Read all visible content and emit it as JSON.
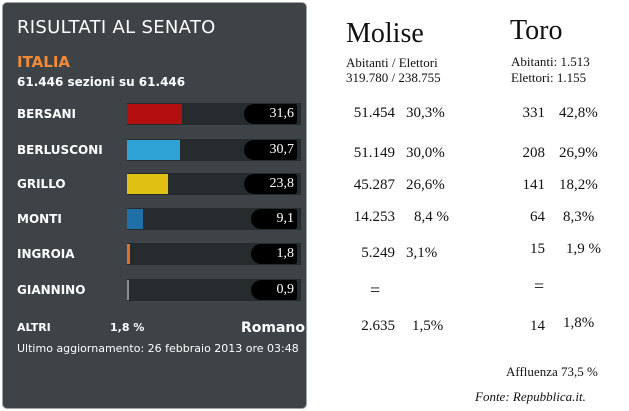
{
  "panel": {
    "title": "RISULTATI AL  SENATO",
    "country": "ITALIA",
    "sections": "61.446 sezioni su 61.446",
    "rows": [
      {
        "name": "BERSANI",
        "pct": "31,6",
        "value": 31.6,
        "color": "#b30f0f"
      },
      {
        "name": "BERLUSCONI",
        "pct": "30,7",
        "value": 30.7,
        "color": "#2ea3d6"
      },
      {
        "name": "GRILLO",
        "pct": "23,8",
        "value": 23.8,
        "color": "#e0c010"
      },
      {
        "name": "MONTI",
        "pct": "9,1",
        "value": 9.1,
        "color": "#1f6fa8"
      },
      {
        "name": "INGROIA",
        "pct": "1,8",
        "value": 1.8,
        "color": "#e07028"
      },
      {
        "name": "GIANNINO",
        "pct": "0,9",
        "value": 0.9,
        "color": "#8a8f92"
      }
    ],
    "altri_label": "ALTRI",
    "altri_value": "1,8 %",
    "altri_extra": "Romano",
    "update": "Ultimo aggiornamento: 26 febbraio 2013 ore 03:48"
  },
  "molise": {
    "title": "Molise",
    "subtitle": "Abitanti / Elettori",
    "counts": "319.780 / 238.755",
    "rows": [
      {
        "votes": "51.454",
        "pct": "30,3%"
      },
      {
        "votes": "51.149",
        "pct": "30,0%"
      },
      {
        "votes": "45.287",
        "pct": "26,6%"
      },
      {
        "votes": "14.253",
        "pct": "8,4 %"
      },
      {
        "votes": "5.249",
        "pct": "3,1%"
      },
      {
        "votes": "=",
        "pct": ""
      },
      {
        "votes": "2.635",
        "pct": "1,5%"
      }
    ]
  },
  "toro": {
    "title": "Toro",
    "abitanti": "Abitanti: 1.513",
    "elettori": "Elettori:  1.155",
    "rows": [
      {
        "votes": "331",
        "pct": "42,8%"
      },
      {
        "votes": "208",
        "pct": "26,9%"
      },
      {
        "votes": "141",
        "pct": "18,2%"
      },
      {
        "votes": "64",
        "pct": "8,3%"
      },
      {
        "votes": "15",
        "pct": "1,9 %"
      },
      {
        "votes": "=",
        "pct": ""
      },
      {
        "votes": "14",
        "pct": "1,8%"
      }
    ],
    "affluenza": "Affluenza  73,5 %"
  },
  "source": "Fonte: Repubblica.it."
}
